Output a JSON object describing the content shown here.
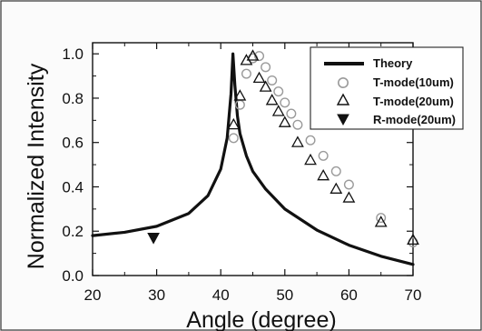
{
  "chart_data": {
    "type": "line",
    "title": "",
    "xlabel": "Angle (degree)",
    "ylabel": "Normalized Intensity",
    "xlim": [
      20,
      70
    ],
    "ylim": [
      0.0,
      1.05
    ],
    "x_ticks": [
      20,
      30,
      40,
      50,
      60,
      70
    ],
    "x_tick_labels": [
      "20",
      "30",
      "40",
      "50",
      "60",
      "70"
    ],
    "y_ticks": [
      0.0,
      0.2,
      0.4,
      0.6,
      0.8,
      1.0
    ],
    "y_tick_labels": [
      "0.0",
      "0.2",
      "0.4",
      "0.6",
      "0.8",
      "1.0"
    ],
    "grid": false,
    "legend_position": "top-right",
    "series": [
      {
        "name": "Theory",
        "kind": "line",
        "color": "#111111",
        "x": [
          20,
          25,
          30,
          35,
          38,
          40,
          41,
          41.6,
          41.9,
          42.2,
          42.6,
          43,
          44,
          45,
          47,
          50,
          55,
          60,
          65,
          70
        ],
        "y": [
          0.18,
          0.195,
          0.222,
          0.28,
          0.36,
          0.48,
          0.62,
          0.82,
          1.0,
          0.86,
          0.72,
          0.64,
          0.54,
          0.47,
          0.39,
          0.3,
          0.205,
          0.137,
          0.087,
          0.05
        ]
      },
      {
        "name": "T-mode(10um)",
        "kind": "circle",
        "color": "#9a9a9a",
        "x": [
          42,
          43,
          44,
          45,
          46,
          47,
          48,
          49,
          50,
          51,
          52,
          54,
          56,
          58,
          60,
          65,
          70
        ],
        "y": [
          0.62,
          0.77,
          0.91,
          0.98,
          0.99,
          0.94,
          0.88,
          0.83,
          0.78,
          0.73,
          0.68,
          0.61,
          0.54,
          0.47,
          0.41,
          0.26,
          0.15
        ]
      },
      {
        "name": "T-mode(20um)",
        "kind": "triangle-up",
        "color": "#111111",
        "x": [
          42,
          43,
          44,
          45,
          46,
          47,
          48,
          49,
          50,
          52,
          54,
          56,
          58,
          60,
          65,
          70
        ],
        "y": [
          0.68,
          0.81,
          0.97,
          0.99,
          0.89,
          0.85,
          0.79,
          0.74,
          0.69,
          0.6,
          0.52,
          0.45,
          0.39,
          0.35,
          0.24,
          0.16
        ]
      },
      {
        "name": "R-mode(20um)",
        "kind": "triangle-down",
        "color": "#111111",
        "x": [
          29.5
        ],
        "y": [
          0.17
        ]
      }
    ]
  }
}
